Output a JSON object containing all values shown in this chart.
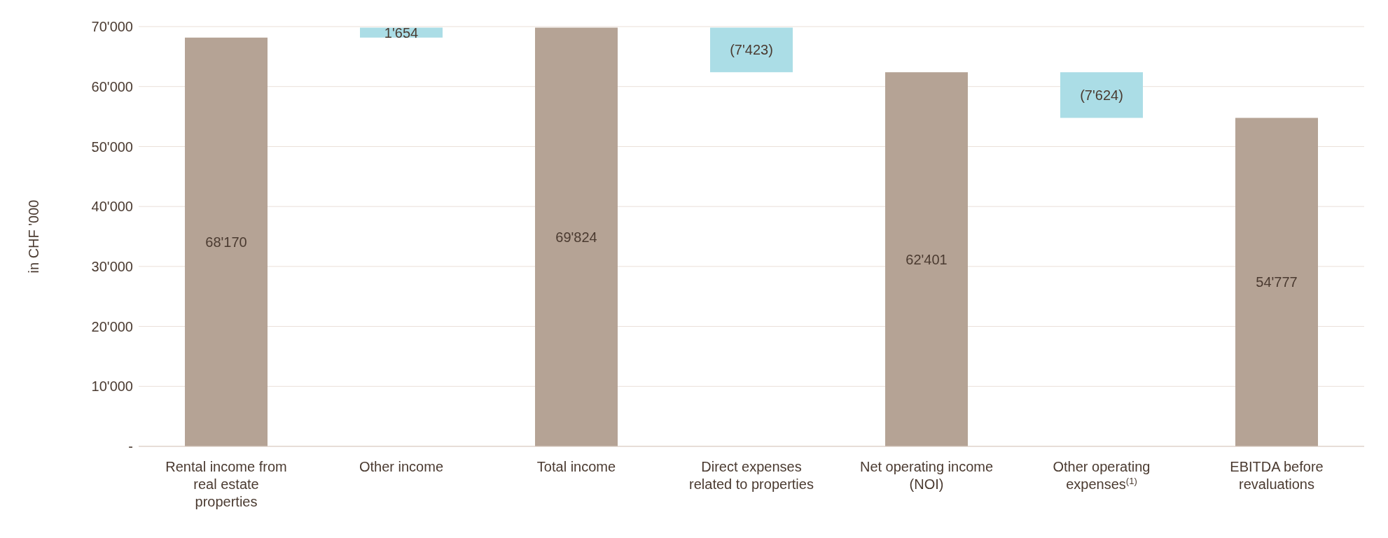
{
  "chart_data": {
    "type": "bar",
    "ylabel": "in CHF '000",
    "categories": [
      "Rental income from real estate properties",
      "Other income",
      "Total income",
      "Direct expenses related to properties",
      "Net operating income (NOI)",
      "Other operating expenses$^{(1)}$",
      "EBITDA before revaluations"
    ],
    "values": [
      68170,
      1654,
      69824,
      -7423,
      62401,
      -7624,
      54777
    ],
    "base": [
      0,
      68170,
      0,
      69824,
      0,
      62401,
      0
    ],
    "value_labels": [
      "68'170",
      "1'654",
      "69'824",
      "(7'423)",
      "62'401",
      "(7'624)",
      "54'777"
    ],
    "colors": [
      "#b5a395",
      "#abdde6",
      "#b5a395",
      "#abdde6",
      "#b5a395",
      "#abdde6",
      "#b5a395"
    ],
    "ylim": [
      0,
      70000
    ],
    "yticks": [
      {
        "value": 0,
        "label": "-"
      },
      {
        "value": 10000,
        "label": "10'000"
      },
      {
        "value": 20000,
        "label": "20'000"
      },
      {
        "value": 30000,
        "label": "30'000"
      },
      {
        "value": 40000,
        "label": "40'000"
      },
      {
        "value": 50000,
        "label": "50'000"
      },
      {
        "value": 60000,
        "label": "60'000"
      },
      {
        "value": 70000,
        "label": "70'000"
      }
    ],
    "grid": "y"
  }
}
